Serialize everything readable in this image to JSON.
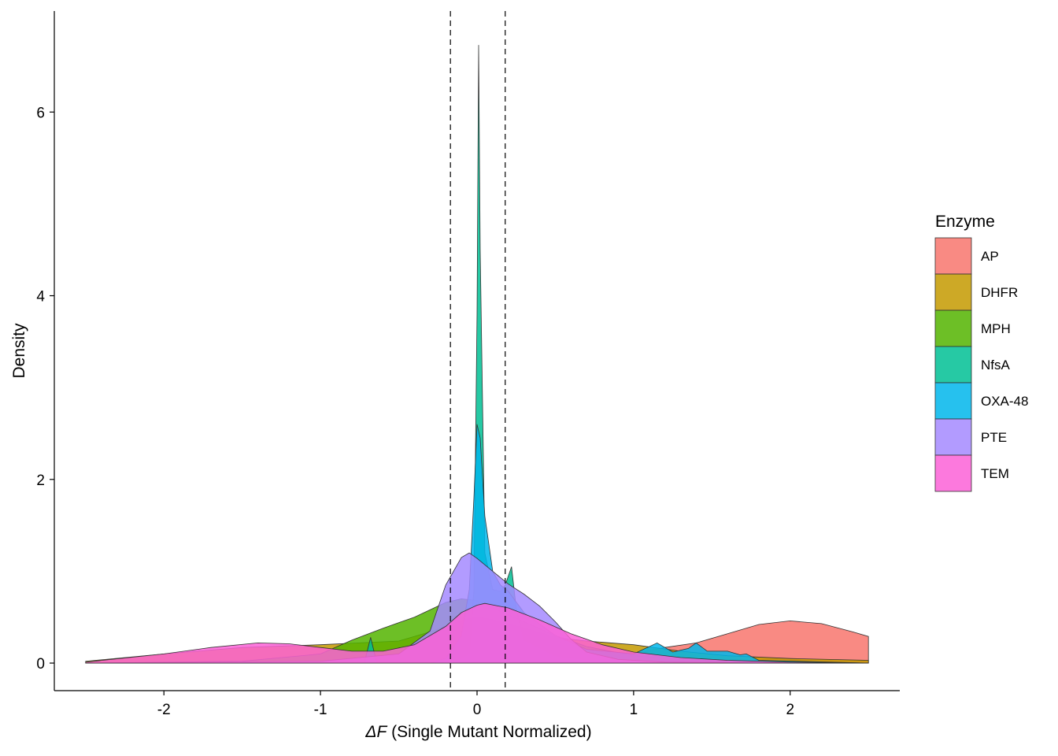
{
  "chart_data": {
    "type": "area",
    "title": "",
    "xlabel_symbol": "ΔF",
    "xlabel_rest": " (Single Mutant Normalized)",
    "ylabel": "Density",
    "xlim": [
      -2.7,
      2.7
    ],
    "ylim": [
      -0.3,
      7.1
    ],
    "x_ticks": [
      -2,
      -1,
      0,
      1,
      2
    ],
    "x_tick_labels": [
      "-2",
      "-1",
      "0",
      "1",
      "2"
    ],
    "y_ticks": [
      0,
      2,
      4,
      6
    ],
    "y_tick_labels": [
      "0",
      "2",
      "4",
      "6"
    ],
    "grid": false,
    "reference_lines": [
      -0.17,
      0.18
    ],
    "legend": {
      "title": "Enzyme",
      "placement": "right",
      "entries": [
        "AP",
        "DHFR",
        "MPH",
        "NfsA",
        "OXA-48",
        "PTE",
        "TEM"
      ]
    },
    "series": [
      {
        "name": "AP",
        "color": "#F8766D",
        "points": [
          [
            -2.5,
            0
          ],
          [
            -1.0,
            0
          ],
          [
            0.5,
            0.02
          ],
          [
            1.0,
            0.1
          ],
          [
            1.2,
            0.17
          ],
          [
            1.4,
            0.22
          ],
          [
            1.6,
            0.32
          ],
          [
            1.8,
            0.42
          ],
          [
            2.0,
            0.46
          ],
          [
            2.2,
            0.43
          ],
          [
            2.4,
            0.34
          ],
          [
            2.5,
            0.29
          ]
        ]
      },
      {
        "name": "DHFR",
        "color": "#C49A00",
        "points": [
          [
            -2.5,
            0.02
          ],
          [
            -2.0,
            0.1
          ],
          [
            -1.5,
            0.17
          ],
          [
            -1.0,
            0.2
          ],
          [
            -0.5,
            0.24
          ],
          [
            -0.3,
            0.34
          ],
          [
            -0.1,
            0.46
          ],
          [
            0.0,
            0.5
          ],
          [
            0.1,
            0.47
          ],
          [
            0.3,
            0.38
          ],
          [
            0.5,
            0.28
          ],
          [
            0.7,
            0.24
          ],
          [
            1.0,
            0.2
          ],
          [
            1.3,
            0.13
          ],
          [
            1.6,
            0.08
          ],
          [
            2.0,
            0.05
          ],
          [
            2.5,
            0.03
          ]
        ]
      },
      {
        "name": "MPH",
        "color": "#53B400",
        "points": [
          [
            -2.5,
            0
          ],
          [
            -1.5,
            0.02
          ],
          [
            -1.0,
            0.1
          ],
          [
            -0.8,
            0.25
          ],
          [
            -0.6,
            0.38
          ],
          [
            -0.4,
            0.5
          ],
          [
            -0.3,
            0.58
          ],
          [
            -0.2,
            0.66
          ],
          [
            -0.1,
            0.7
          ],
          [
            0.0,
            0.68
          ],
          [
            0.1,
            0.6
          ],
          [
            0.3,
            0.45
          ],
          [
            0.5,
            0.3
          ],
          [
            0.7,
            0.18
          ],
          [
            1.0,
            0.08
          ],
          [
            1.5,
            0.02
          ],
          [
            2.5,
            0
          ]
        ]
      },
      {
        "name": "NfsA",
        "color": "#00C094",
        "points": [
          [
            -2.5,
            0
          ],
          [
            -0.72,
            0
          ],
          [
            -0.68,
            0.28
          ],
          [
            -0.64,
            0
          ],
          [
            -0.3,
            0
          ],
          [
            -0.15,
            0.02
          ],
          [
            -0.05,
            0.1
          ],
          [
            -0.02,
            0.8
          ],
          [
            0.0,
            3.8
          ],
          [
            0.01,
            6.73
          ],
          [
            0.02,
            4.5
          ],
          [
            0.05,
            1.2
          ],
          [
            0.1,
            0.8
          ],
          [
            0.15,
            0.78
          ],
          [
            0.18,
            0.85
          ],
          [
            0.22,
            1.05
          ],
          [
            0.25,
            0.6
          ],
          [
            0.3,
            0.25
          ],
          [
            0.5,
            0.08
          ],
          [
            0.8,
            0.02
          ],
          [
            2.5,
            0
          ]
        ]
      },
      {
        "name": "OXA-48",
        "color": "#00B6EB",
        "points": [
          [
            -2.5,
            0
          ],
          [
            -0.3,
            0
          ],
          [
            -0.2,
            0.05
          ],
          [
            -0.1,
            0.3
          ],
          [
            -0.05,
            0.8
          ],
          [
            -0.02,
            1.8
          ],
          [
            0.0,
            2.6
          ],
          [
            0.02,
            2.45
          ],
          [
            0.05,
            1.6
          ],
          [
            0.1,
            1.0
          ],
          [
            0.15,
            0.85
          ],
          [
            0.2,
            0.78
          ],
          [
            0.3,
            0.55
          ],
          [
            0.5,
            0.3
          ],
          [
            0.7,
            0.15
          ],
          [
            1.0,
            0.1
          ],
          [
            1.15,
            0.22
          ],
          [
            1.25,
            0.12
          ],
          [
            1.35,
            0.16
          ],
          [
            1.4,
            0.22
          ],
          [
            1.47,
            0.13
          ],
          [
            1.6,
            0.13
          ],
          [
            1.68,
            0.09
          ],
          [
            1.72,
            0.1
          ],
          [
            1.8,
            0.03
          ],
          [
            2.5,
            0
          ]
        ]
      },
      {
        "name": "PTE",
        "color": "#A58AFF",
        "points": [
          [
            -2.5,
            0
          ],
          [
            -1.0,
            0.02
          ],
          [
            -0.5,
            0.1
          ],
          [
            -0.3,
            0.35
          ],
          [
            -0.2,
            0.85
          ],
          [
            -0.1,
            1.15
          ],
          [
            -0.05,
            1.2
          ],
          [
            0.0,
            1.14
          ],
          [
            0.1,
            1.0
          ],
          [
            0.2,
            0.86
          ],
          [
            0.3,
            0.75
          ],
          [
            0.4,
            0.62
          ],
          [
            0.5,
            0.45
          ],
          [
            0.6,
            0.26
          ],
          [
            0.7,
            0.12
          ],
          [
            0.9,
            0.04
          ],
          [
            1.2,
            0.01
          ],
          [
            2.5,
            0
          ]
        ]
      },
      {
        "name": "TEM",
        "color": "#FB61D7",
        "points": [
          [
            -2.5,
            0.01
          ],
          [
            -2.0,
            0.1
          ],
          [
            -1.7,
            0.17
          ],
          [
            -1.4,
            0.22
          ],
          [
            -1.2,
            0.21
          ],
          [
            -1.0,
            0.17
          ],
          [
            -0.8,
            0.13
          ],
          [
            -0.6,
            0.13
          ],
          [
            -0.4,
            0.2
          ],
          [
            -0.2,
            0.4
          ],
          [
            -0.1,
            0.55
          ],
          [
            0.0,
            0.63
          ],
          [
            0.05,
            0.65
          ],
          [
            0.2,
            0.6
          ],
          [
            0.4,
            0.47
          ],
          [
            0.6,
            0.32
          ],
          [
            0.8,
            0.2
          ],
          [
            1.0,
            0.12
          ],
          [
            1.3,
            0.06
          ],
          [
            1.6,
            0.03
          ],
          [
            2.0,
            0.01
          ],
          [
            2.5,
            0
          ]
        ]
      }
    ]
  }
}
